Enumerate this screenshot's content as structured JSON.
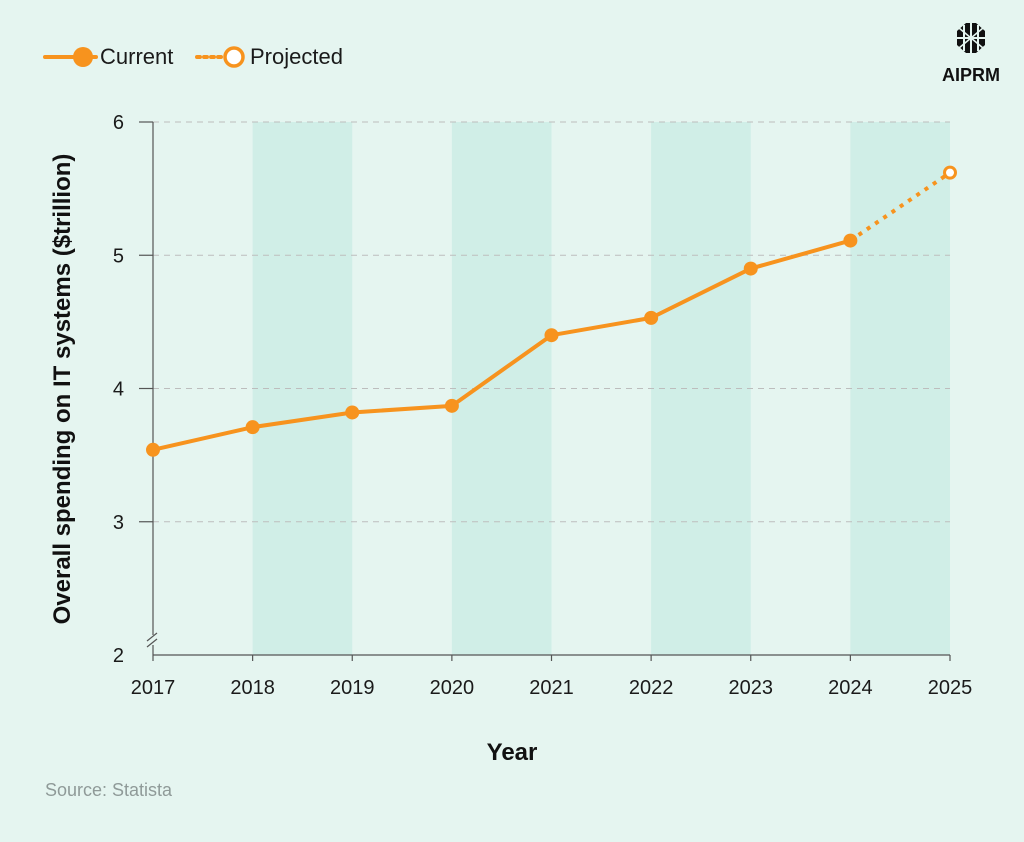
{
  "brand": {
    "name": "AIPRM",
    "logo_icon": "aiprm-logo-icon"
  },
  "legend": {
    "current_label": "Current",
    "projected_label": "Projected"
  },
  "source": "Source: Statista",
  "colors": {
    "background": "#e5f5f0",
    "band": "#d0eee7",
    "line": "#f7931e",
    "grid": "#bdbdbd",
    "axis": "#555555",
    "text": "#1a1a1a"
  },
  "chart_data": {
    "type": "line",
    "title": "",
    "xlabel": "Year",
    "ylabel": "Overall spending on IT systems ($trillion)",
    "x": [
      "2017",
      "2018",
      "2019",
      "2020",
      "2021",
      "2022",
      "2023",
      "2024",
      "2025"
    ],
    "ylim": [
      2,
      6
    ],
    "yticks": [
      2,
      3,
      4,
      5,
      6
    ],
    "axis_break": true,
    "grid": "horizontal dashed",
    "legend_position": "top-left",
    "series": [
      {
        "name": "Current",
        "style": "solid",
        "marker": "filled",
        "x": [
          "2017",
          "2018",
          "2019",
          "2020",
          "2021",
          "2022",
          "2023",
          "2024"
        ],
        "values": [
          3.54,
          3.71,
          3.82,
          3.87,
          4.4,
          4.53,
          4.9,
          5.11
        ]
      },
      {
        "name": "Projected",
        "style": "dotted",
        "marker": "hollow",
        "x": [
          "2024",
          "2025"
        ],
        "values": [
          5.11,
          5.62
        ]
      }
    ]
  }
}
